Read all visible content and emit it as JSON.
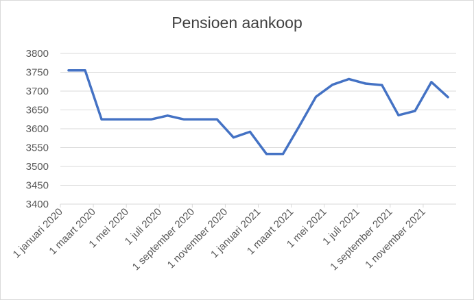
{
  "chart_data": {
    "type": "line",
    "title": "Pensioen aankoop",
    "xlabel": "",
    "ylabel": "",
    "ylim": [
      3400,
      3800
    ],
    "yticks": [
      3400,
      3450,
      3500,
      3550,
      3600,
      3650,
      3700,
      3750,
      3800
    ],
    "grid": true,
    "legend": "none",
    "line_color": "#4472C4",
    "x": [
      "2020-01",
      "2020-02",
      "2020-03",
      "2020-04",
      "2020-05",
      "2020-06",
      "2020-07",
      "2020-08",
      "2020-09",
      "2020-10",
      "2020-11",
      "2020-12",
      "2021-01",
      "2021-02",
      "2021-03",
      "2021-04",
      "2021-05",
      "2021-06",
      "2021-07",
      "2021-08",
      "2021-09",
      "2021-10",
      "2021-11",
      "2021-12"
    ],
    "xtick_labels": [
      {
        "month": "2020-01",
        "label": "1 januari 2020"
      },
      {
        "month": "2020-03",
        "label": "1 maart 2020"
      },
      {
        "month": "2020-05",
        "label": "1 mei 2020"
      },
      {
        "month": "2020-07",
        "label": "1 juli 2020"
      },
      {
        "month": "2020-09",
        "label": "1 september 2020"
      },
      {
        "month": "2020-11",
        "label": "1 november 2020"
      },
      {
        "month": "2021-01",
        "label": "1 januari 2021"
      },
      {
        "month": "2021-03",
        "label": "1 maart 2021"
      },
      {
        "month": "2021-05",
        "label": "1 mei 2021"
      },
      {
        "month": "2021-07",
        "label": "1 juli 2021"
      },
      {
        "month": "2021-09",
        "label": "1 september 2021"
      },
      {
        "month": "2021-11",
        "label": "1 november 2021"
      }
    ],
    "series": [
      {
        "values": [
          3755,
          3755,
          3625,
          3625,
          3625,
          3625,
          3635,
          3625,
          3625,
          3625,
          3577,
          3592,
          3533,
          3533,
          3608,
          3685,
          3717,
          3732,
          3720,
          3716,
          3636,
          3647,
          3724,
          3684
        ]
      }
    ]
  }
}
